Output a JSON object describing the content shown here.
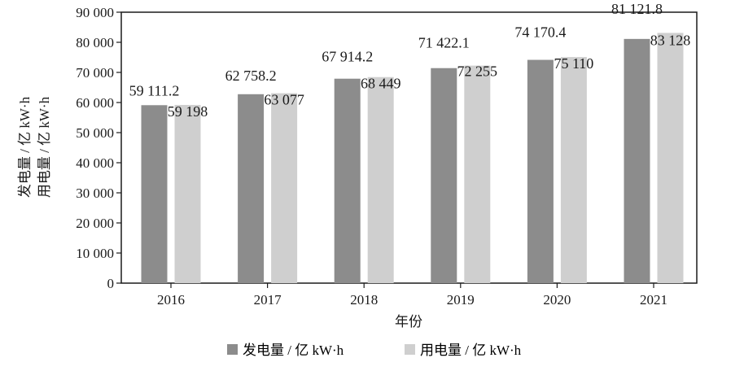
{
  "chart_data": {
    "type": "bar",
    "categories": [
      "2016",
      "2017",
      "2018",
      "2019",
      "2020",
      "2021"
    ],
    "series": [
      {
        "name": "发电量 / 亿 kW·h",
        "values": [
          59111.2,
          62758.2,
          67914.2,
          71422.1,
          74170.4,
          81121.8
        ],
        "labels": [
          "59 111.2",
          "62 758.2",
          "67 914.2",
          "71 422.1",
          "74 170.4",
          "81 121.8"
        ],
        "color": "#8c8c8c"
      },
      {
        "name": "用电量 / 亿 kW·h",
        "values": [
          59198,
          63077,
          68449,
          72255,
          75110,
          83128
        ],
        "labels": [
          "59 198",
          "63 077",
          "68 449",
          "72 255",
          "75 110",
          "83 128"
        ],
        "color": "#cfcfcf"
      }
    ],
    "xlabel": "年份",
    "ylabel_lines": [
      "发电量 / 亿 kW·h",
      "用电量 / 亿 kW·h"
    ],
    "ylim": [
      0,
      90000
    ],
    "yticks": [
      0,
      10000,
      20000,
      30000,
      40000,
      50000,
      60000,
      70000,
      80000,
      90000
    ],
    "ytick_labels": [
      "0",
      "10 000",
      "20 000",
      "30 000",
      "40 000",
      "50 000",
      "60 000",
      "70 000",
      "80 000",
      "90 000"
    ],
    "grid": false,
    "legend_position": "bottom"
  }
}
